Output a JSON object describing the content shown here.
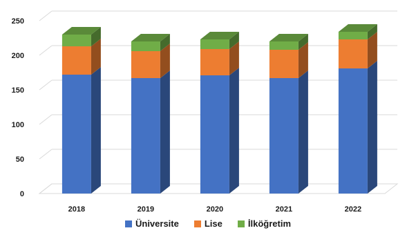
{
  "chart_data": {
    "type": "bar",
    "stacked": true,
    "three_d": true,
    "categories": [
      "2018",
      "2019",
      "2020",
      "2021",
      "2022"
    ],
    "series": [
      {
        "name": "Üniversite",
        "values": [
          172,
          167,
          171,
          167,
          181
        ],
        "color": "#4472C4"
      },
      {
        "name": "Lise",
        "values": [
          41,
          39,
          38,
          41,
          42
        ],
        "color": "#ED7D31"
      },
      {
        "name": "İlköğretim",
        "values": [
          17,
          14,
          14,
          12,
          11
        ],
        "color": "#70AD47"
      }
    ],
    "ylim": [
      0,
      250
    ],
    "yticks": [
      "0",
      "50",
      "100",
      "150",
      "200",
      "250"
    ],
    "grid": true,
    "legend_position": "bottom"
  }
}
